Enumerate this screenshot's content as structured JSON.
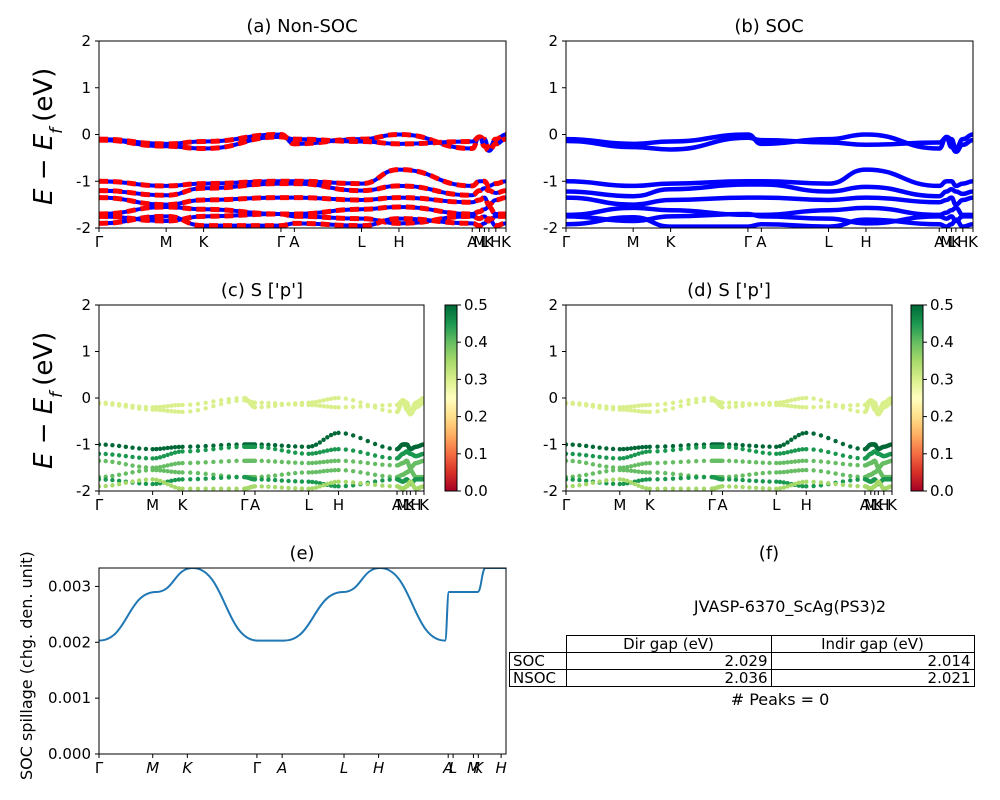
{
  "figure": {
    "panels": {
      "a": {
        "title": "(a) Non-SOC"
      },
      "b": {
        "title": "(b) SOC"
      },
      "c": {
        "title": "(c)  S ['p']"
      },
      "d": {
        "title": "(d) S ['p']"
      },
      "e": {
        "title": "(e)"
      },
      "f": {
        "title": "(f)"
      }
    },
    "band_ylabel": "E − E",
    "band_ylabel_sub": "f",
    "band_ylabel_unit": "(eV)",
    "spillage_ylabel": "SOC spillage (chg. den. unit)"
  },
  "chart_data": [
    {
      "panel": "a",
      "type": "line",
      "title": "(a) Non-SOC",
      "ylabel": "E − E_f (eV)",
      "ylim": [
        -2,
        2
      ],
      "yticks": [
        -2,
        -1,
        0,
        1,
        2
      ],
      "kpath": [
        "Γ",
        "M",
        "K",
        "Γ",
        "A",
        "L",
        "H",
        "A",
        "M",
        "L",
        "K",
        "H",
        "K"
      ],
      "xtick_labels": [
        "Γ",
        "M",
        "K",
        "Γ",
        "A",
        "L",
        "H",
        "A",
        "M",
        "L",
        "K",
        "H",
        "K"
      ],
      "series": [
        {
          "color": "#ff0000",
          "style": "dashed",
          "bands": [
            [
              -0.1,
              -0.2,
              -0.15,
              0.0,
              -0.2,
              -0.1,
              0.0,
              -0.3,
              -0.05,
              -0.1,
              -0.3,
              -0.1,
              0.0
            ],
            [
              -0.12,
              -0.25,
              -0.3,
              -0.05,
              -0.1,
              -0.15,
              -0.2,
              -0.15,
              -0.05,
              -0.25,
              -0.35,
              -0.2,
              -0.1
            ],
            [
              -1.0,
              -1.1,
              -1.05,
              -1.0,
              -1.0,
              -1.05,
              -0.75,
              -1.1,
              -1.0,
              -1.0,
              -1.1,
              -1.05,
              -1.0
            ],
            [
              -1.2,
              -1.3,
              -1.15,
              -1.05,
              -1.05,
              -1.2,
              -1.1,
              -1.3,
              -1.2,
              -1.15,
              -1.2,
              -1.25,
              -1.2
            ],
            [
              -1.35,
              -1.5,
              -1.4,
              -1.35,
              -1.35,
              -1.4,
              -1.35,
              -1.45,
              -1.4,
              -1.35,
              -1.5,
              -1.4,
              -1.35
            ],
            [
              -1.7,
              -1.55,
              -1.6,
              -1.7,
              -1.7,
              -1.6,
              -1.55,
              -1.7,
              -1.65,
              -1.6,
              -1.55,
              -1.7,
              -1.7
            ],
            [
              -1.75,
              -1.85,
              -1.75,
              -1.7,
              -1.75,
              -1.8,
              -1.9,
              -1.75,
              -1.8,
              -1.75,
              -1.85,
              -1.75,
              -1.75
            ],
            [
              -1.9,
              -1.75,
              -1.95,
              -1.95,
              -1.9,
              -1.95,
              -1.8,
              -1.9,
              -1.95,
              -1.9,
              -1.8,
              -1.95,
              -1.9
            ]
          ]
        },
        {
          "color": "#0000ff",
          "style": "solid"
        }
      ]
    },
    {
      "panel": "b",
      "type": "line",
      "title": "(b) SOC",
      "ylim": [
        -2,
        2
      ],
      "yticks": [
        -2,
        -1,
        0,
        1,
        2
      ],
      "xtick_labels": [
        "Γ",
        "M",
        "K",
        "Γ",
        "A",
        "L",
        "H",
        "A",
        "M",
        "L",
        "K",
        "H",
        "K"
      ],
      "series": [
        {
          "color": "#0000ff",
          "style": "solid"
        }
      ]
    },
    {
      "panel": "c",
      "type": "scatter",
      "title": "(c)  S ['p']",
      "ylim": [
        -2,
        2
      ],
      "yticks": [
        -2,
        -1,
        0,
        1,
        2
      ],
      "colorbar": {
        "min": 0.0,
        "max": 0.5,
        "ticks": [
          0.0,
          0.1,
          0.2,
          0.3,
          0.4,
          0.5
        ],
        "colormap": "RdYlGn"
      },
      "xtick_labels": [
        "Γ",
        "M",
        "K",
        "Γ",
        "A",
        "L",
        "H",
        "A",
        "M",
        "L",
        "K",
        "H",
        "K"
      ]
    },
    {
      "panel": "d",
      "type": "scatter",
      "title": "(d) S ['p']",
      "ylim": [
        -2,
        2
      ],
      "yticks": [
        -2,
        -1,
        0,
        1,
        2
      ],
      "colorbar": {
        "min": 0.0,
        "max": 0.5,
        "ticks": [
          0.0,
          0.1,
          0.2,
          0.3,
          0.4,
          0.5
        ],
        "colormap": "RdYlGn"
      },
      "xtick_labels": [
        "Γ",
        "M",
        "K",
        "Γ",
        "A",
        "L",
        "H",
        "A",
        "M",
        "L",
        "K",
        "H",
        "K"
      ]
    },
    {
      "panel": "e",
      "type": "line",
      "title": "(e)",
      "ylabel": "SOC spillage (chg. den. unit)",
      "ylim": [
        0.0,
        0.00333
      ],
      "yticks": [
        0.0,
        0.001,
        0.002,
        0.003
      ],
      "xtick_labels": [
        "Γ",
        "M",
        "K",
        "Γ",
        "A",
        "L",
        "H",
        "A",
        "L",
        "M",
        "K",
        "H"
      ],
      "x": [
        0,
        0.14,
        0.23,
        0.39,
        0.455,
        0.6,
        0.69,
        0.85,
        0.86,
        0.93,
        0.95,
        1.0
      ],
      "values": [
        0.00203,
        0.0029,
        0.00333,
        0.00203,
        0.00203,
        0.0029,
        0.00333,
        0.00203,
        0.0029,
        0.0029,
        0.00333,
        0.00333
      ],
      "color": "#1f77b4"
    },
    {
      "panel": "f",
      "type": "table",
      "title": "(f)",
      "columns": [
        "",
        "Dir gap (eV)",
        "Indir gap (eV)"
      ],
      "rows": [
        [
          "SOC",
          "2.029",
          "2.014"
        ],
        [
          "NSOC",
          "2.036",
          "2.021"
        ]
      ]
    }
  ],
  "info": {
    "material": "JVASP-6370_ScAg(PS3)2",
    "peaks": "# Peaks = 0",
    "table": {
      "header": {
        "dir": "Dir gap (eV)",
        "indir": "Indir gap (eV)"
      },
      "soc": {
        "label": "SOC",
        "dir": "2.029",
        "indir": "2.014"
      },
      "nsoc": {
        "label": "NSOC",
        "dir": "2.036",
        "indir": "2.021"
      }
    }
  },
  "colors": {
    "nonsoc": "#ff0000",
    "soc": "#0000ff",
    "spillage": "#1f77b4"
  }
}
